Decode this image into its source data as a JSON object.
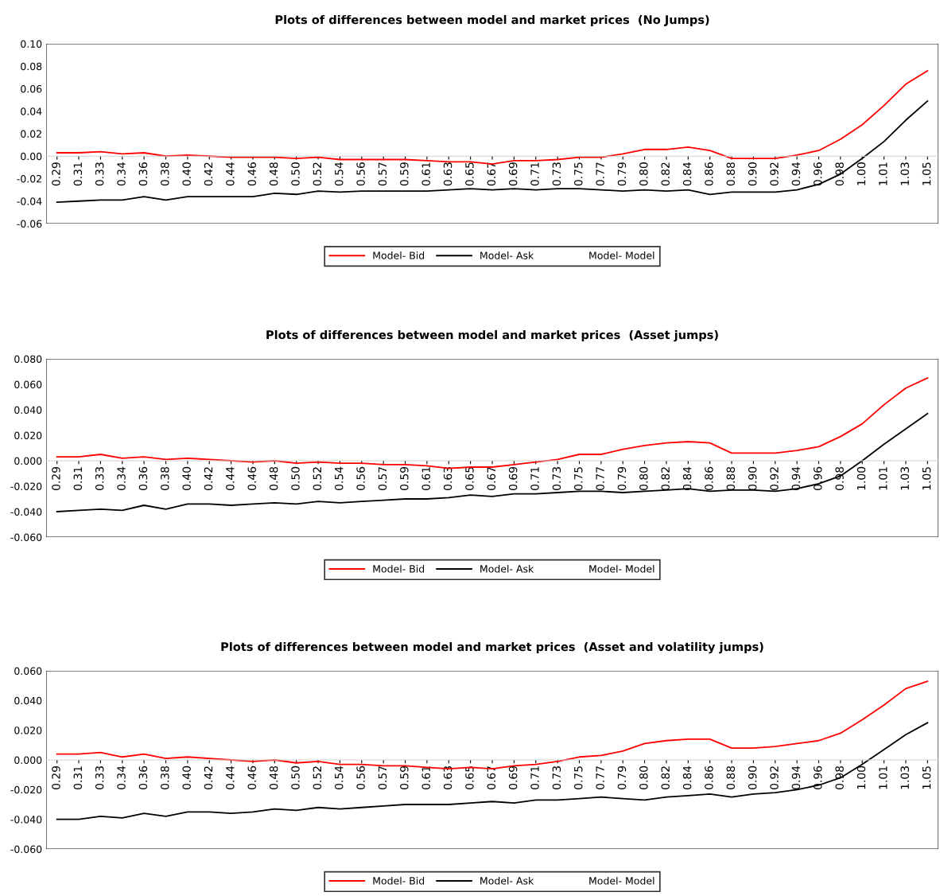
{
  "chart_data": [
    {
      "type": "line",
      "title": "Plots of differences between model and market prices  (No Jumps)",
      "categories": [
        "0.29",
        "0.31",
        "0.33",
        "0.34",
        "0.36",
        "0.38",
        "0.40",
        "0.42",
        "0.44",
        "0.46",
        "0.48",
        "0.50",
        "0.52",
        "0.54",
        "0.56",
        "0.57",
        "0.59",
        "0.61",
        "0.63",
        "0.65",
        "0.67",
        "0.69",
        "0.71",
        "0.73",
        "0.75",
        "0.77",
        "0.79",
        "0.80",
        "0.82",
        "0.84",
        "0.86",
        "0.88",
        "0.90",
        "0.92",
        "0.94",
        "0.96",
        "0.98",
        "1.00",
        "1.01",
        "1.03",
        "1.05"
      ],
      "series": [
        {
          "name": "Model- Bid",
          "color": "#ff0000",
          "values": [
            0.003,
            0.003,
            0.004,
            0.002,
            0.003,
            0.0,
            0.001,
            0.0,
            -0.001,
            -0.001,
            -0.001,
            -0.002,
            -0.001,
            -0.003,
            -0.003,
            -0.003,
            -0.003,
            -0.004,
            -0.005,
            -0.005,
            -0.007,
            -0.004,
            -0.004,
            -0.003,
            -0.001,
            -0.001,
            0.002,
            0.006,
            0.006,
            0.008,
            0.005,
            -0.002,
            -0.002,
            -0.002,
            0.001,
            0.005,
            0.015,
            0.028,
            0.045,
            0.064,
            0.076
          ]
        },
        {
          "name": "Model- Ask",
          "color": "#000000",
          "values": [
            -0.041,
            -0.04,
            -0.039,
            -0.039,
            -0.036,
            -0.039,
            -0.036,
            -0.036,
            -0.036,
            -0.036,
            -0.033,
            -0.034,
            -0.031,
            -0.032,
            -0.031,
            -0.031,
            -0.031,
            -0.031,
            -0.03,
            -0.029,
            -0.03,
            -0.029,
            -0.03,
            -0.029,
            -0.029,
            -0.03,
            -0.031,
            -0.03,
            -0.031,
            -0.03,
            -0.034,
            -0.032,
            -0.032,
            -0.032,
            -0.03,
            -0.025,
            -0.016,
            -0.002,
            0.013,
            0.032,
            0.049
          ]
        },
        {
          "name": "Model- Model",
          "values": [
            null,
            null,
            null,
            null,
            null,
            null,
            null,
            null,
            null,
            null,
            null,
            null,
            null,
            null,
            null,
            null,
            null,
            null,
            null,
            null,
            null,
            null,
            null,
            null,
            null,
            null,
            null,
            null,
            null,
            null,
            null,
            null,
            null,
            null,
            null,
            null,
            null,
            null,
            null,
            null,
            null
          ]
        }
      ],
      "ylim": [
        -0.06,
        0.1
      ],
      "yticks": [
        {
          "value": -0.06,
          "label": "-0.06"
        },
        {
          "value": -0.04,
          "label": "-0.04"
        },
        {
          "value": -0.02,
          "label": "-0.02"
        },
        {
          "value": 0,
          "label": "0.00"
        },
        {
          "value": 0.02,
          "label": "0.02"
        },
        {
          "value": 0.04,
          "label": "0.04"
        },
        {
          "value": 0.06,
          "label": "0.06"
        },
        {
          "value": 0.08,
          "label": "0.08"
        },
        {
          "value": 0.1,
          "label": "0.10"
        }
      ],
      "legend": "bottom",
      "grid": false
    },
    {
      "type": "line",
      "title": "Plots of differences between model and market prices  (Asset jumps)",
      "categories": [
        "0.29",
        "0.31",
        "0.33",
        "0.34",
        "0.36",
        "0.38",
        "0.40",
        "0.42",
        "0.44",
        "0.46",
        "0.48",
        "0.50",
        "0.52",
        "0.54",
        "0.56",
        "0.57",
        "0.59",
        "0.61",
        "0.63",
        "0.65",
        "0.67",
        "0.69",
        "0.71",
        "0.73",
        "0.75",
        "0.77",
        "0.79",
        "0.80",
        "0.82",
        "0.84",
        "0.86",
        "0.88",
        "0.90",
        "0.92",
        "0.94",
        "0.96",
        "0.98",
        "1.00",
        "1.01",
        "1.03",
        "1.05"
      ],
      "series": [
        {
          "name": "Model- Bid",
          "color": "#ff0000",
          "values": [
            0.003,
            0.003,
            0.005,
            0.002,
            0.003,
            0.001,
            0.002,
            0.001,
            0.0,
            -0.001,
            0.0,
            -0.002,
            -0.001,
            -0.002,
            -0.002,
            -0.003,
            -0.003,
            -0.004,
            -0.006,
            -0.005,
            -0.005,
            -0.003,
            -0.001,
            0.001,
            0.005,
            0.005,
            0.009,
            0.012,
            0.014,
            0.015,
            0.014,
            0.006,
            0.006,
            0.006,
            0.008,
            0.011,
            0.019,
            0.029,
            0.044,
            0.057,
            0.065
          ]
        },
        {
          "name": "Model- Ask",
          "color": "#000000",
          "values": [
            -0.04,
            -0.039,
            -0.038,
            -0.039,
            -0.035,
            -0.038,
            -0.034,
            -0.034,
            -0.035,
            -0.034,
            -0.033,
            -0.034,
            -0.032,
            -0.033,
            -0.032,
            -0.031,
            -0.03,
            -0.03,
            -0.029,
            -0.027,
            -0.028,
            -0.026,
            -0.026,
            -0.025,
            -0.024,
            -0.024,
            -0.025,
            -0.024,
            -0.023,
            -0.022,
            -0.024,
            -0.023,
            -0.023,
            -0.024,
            -0.022,
            -0.018,
            -0.012,
            0.0,
            0.013,
            0.025,
            0.037
          ]
        },
        {
          "name": "Model- Model",
          "values": [
            null,
            null,
            null,
            null,
            null,
            null,
            null,
            null,
            null,
            null,
            null,
            null,
            null,
            null,
            null,
            null,
            null,
            null,
            null,
            null,
            null,
            null,
            null,
            null,
            null,
            null,
            null,
            null,
            null,
            null,
            null,
            null,
            null,
            null,
            null,
            null,
            null,
            null,
            null,
            null,
            null
          ]
        }
      ],
      "ylim": [
        -0.06,
        0.08
      ],
      "yticks": [
        {
          "value": -0.06,
          "label": "-0.060"
        },
        {
          "value": -0.04,
          "label": "-0.040"
        },
        {
          "value": -0.02,
          "label": "-0.020"
        },
        {
          "value": 0,
          "label": "0.000"
        },
        {
          "value": 0.02,
          "label": "0.020"
        },
        {
          "value": 0.04,
          "label": "0.040"
        },
        {
          "value": 0.06,
          "label": "0.060"
        },
        {
          "value": 0.08,
          "label": "0.080"
        }
      ],
      "legend": "bottom",
      "grid": false
    },
    {
      "type": "line",
      "title": "Plots of differences between model and market prices  (Asset and volatility jumps)",
      "categories": [
        "0.29",
        "0.31",
        "0.33",
        "0.34",
        "0.36",
        "0.38",
        "0.40",
        "0.42",
        "0.44",
        "0.46",
        "0.48",
        "0.50",
        "0.52",
        "0.54",
        "0.56",
        "0.57",
        "0.59",
        "0.61",
        "0.63",
        "0.65",
        "0.67",
        "0.69",
        "0.71",
        "0.73",
        "0.75",
        "0.77",
        "0.79",
        "0.80",
        "0.82",
        "0.84",
        "0.86",
        "0.88",
        "0.90",
        "0.92",
        "0.94",
        "0.96",
        "0.98",
        "1.00",
        "1.01",
        "1.03",
        "1.05"
      ],
      "series": [
        {
          "name": "Model- Bid",
          "color": "#ff0000",
          "values": [
            0.004,
            0.004,
            0.005,
            0.002,
            0.004,
            0.001,
            0.002,
            0.001,
            0.0,
            -0.001,
            0.0,
            -0.002,
            -0.001,
            -0.003,
            -0.003,
            -0.004,
            -0.004,
            -0.005,
            -0.006,
            -0.005,
            -0.006,
            -0.004,
            -0.003,
            -0.001,
            0.002,
            0.003,
            0.006,
            0.011,
            0.013,
            0.014,
            0.014,
            0.008,
            0.008,
            0.009,
            0.011,
            0.013,
            0.018,
            0.027,
            0.037,
            0.048,
            0.053
          ]
        },
        {
          "name": "Model- Ask",
          "color": "#000000",
          "values": [
            -0.04,
            -0.04,
            -0.038,
            -0.039,
            -0.036,
            -0.038,
            -0.035,
            -0.035,
            -0.036,
            -0.035,
            -0.033,
            -0.034,
            -0.032,
            -0.033,
            -0.032,
            -0.031,
            -0.03,
            -0.03,
            -0.03,
            -0.029,
            -0.028,
            -0.029,
            -0.027,
            -0.027,
            -0.026,
            -0.025,
            -0.026,
            -0.027,
            -0.025,
            -0.024,
            -0.023,
            -0.025,
            -0.023,
            -0.022,
            -0.02,
            -0.017,
            -0.012,
            -0.003,
            0.007,
            0.017,
            0.025
          ]
        },
        {
          "name": "Model- Model",
          "values": [
            null,
            null,
            null,
            null,
            null,
            null,
            null,
            null,
            null,
            null,
            null,
            null,
            null,
            null,
            null,
            null,
            null,
            null,
            null,
            null,
            null,
            null,
            null,
            null,
            null,
            null,
            null,
            null,
            null,
            null,
            null,
            null,
            null,
            null,
            null,
            null,
            null,
            null,
            null,
            null,
            null
          ]
        }
      ],
      "ylim": [
        -0.06,
        0.06
      ],
      "yticks": [
        {
          "value": -0.06,
          "label": "-0.060"
        },
        {
          "value": -0.04,
          "label": "-0.040"
        },
        {
          "value": -0.02,
          "label": "-0.020"
        },
        {
          "value": 0,
          "label": "0.000"
        },
        {
          "value": 0.02,
          "label": "0.020"
        },
        {
          "value": 0.04,
          "label": "0.040"
        },
        {
          "value": 0.06,
          "label": "0.060"
        }
      ],
      "legend": "bottom",
      "grid": false
    }
  ]
}
